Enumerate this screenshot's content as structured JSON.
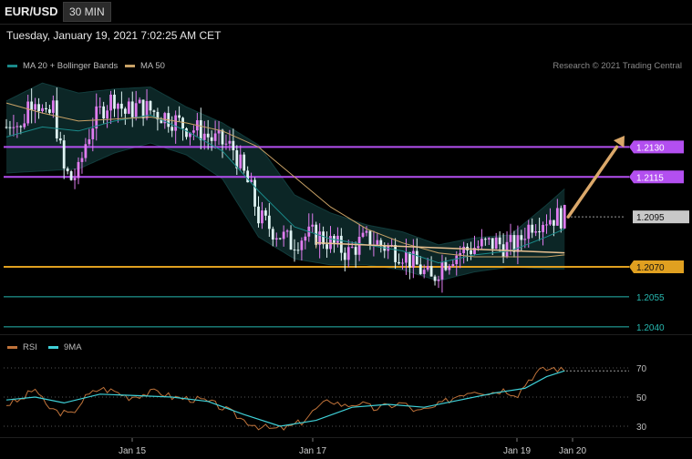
{
  "header": {
    "symbol": "EUR/USD",
    "timeframe": "30 MIN",
    "datetime": "Tuesday, January 19, 2021 7:02:25 AM CET",
    "credit": "Research © 2021 Trading Central"
  },
  "legend": {
    "ma20_bb": "MA 20 + Bollinger Bands",
    "ma50": "MA 50",
    "rsi": "RSI",
    "ma9": "9MA"
  },
  "colors": {
    "background": "#000000",
    "bullish": "#e07cf0",
    "bearish": "#dff3f3",
    "ma20": "#1a8a8a",
    "bollinger_fill": "#0d2a2a",
    "ma50": "#c9a266",
    "resistance": "#b34ff0",
    "pivot": "#e0a020",
    "support": "#27b8b0",
    "target_arrow": "#dba86a",
    "rsi": "#c0733a",
    "rsi_ma": "#3fd1d8",
    "current_price_tag": "#c8c8c8"
  },
  "levels": [
    {
      "value": 1.213,
      "label": "1.2130",
      "kind": "resistance"
    },
    {
      "value": 1.2115,
      "label": "1.2115",
      "kind": "resistance"
    },
    {
      "value": 1.2095,
      "label": "1.2095",
      "kind": "current"
    },
    {
      "value": 1.207,
      "label": "1.2070",
      "kind": "pivot"
    },
    {
      "value": 1.2055,
      "label": "1.2055",
      "kind": "support"
    },
    {
      "value": 1.204,
      "label": "1.2040",
      "kind": "support"
    }
  ],
  "chart_data": {
    "type": "candlestick",
    "x_labels": [
      "Jan 15",
      "Jan 17",
      "Jan 19",
      "Jan 20"
    ],
    "ylim": [
      1.2034,
      1.2168
    ],
    "price_path": [
      [
        0,
        1.214
      ],
      [
        2,
        1.2145
      ],
      [
        4,
        1.2138
      ],
      [
        6,
        1.2152
      ],
      [
        8,
        1.2156
      ],
      [
        11,
        1.2143
      ],
      [
        13,
        1.215
      ],
      [
        16,
        1.2118
      ],
      [
        18,
        1.2114
      ],
      [
        20,
        1.2117
      ],
      [
        22,
        1.2132
      ],
      [
        24,
        1.2142
      ],
      [
        27,
        1.215
      ],
      [
        30,
        1.2155
      ],
      [
        33,
        1.2147
      ],
      [
        36,
        1.215
      ],
      [
        39,
        1.2149
      ],
      [
        42,
        1.2147
      ],
      [
        46,
        1.2144
      ],
      [
        50,
        1.214
      ],
      [
        54,
        1.2138
      ],
      [
        57,
        1.2134
      ],
      [
        60,
        1.2132
      ],
      [
        63,
        1.2129
      ],
      [
        66,
        1.2116
      ],
      [
        68,
        1.2108
      ],
      [
        70,
        1.2095
      ],
      [
        73,
        1.209
      ],
      [
        76,
        1.2086
      ],
      [
        79,
        1.2082
      ],
      [
        82,
        1.2085
      ],
      [
        86,
        1.2086
      ],
      [
        89,
        1.2083
      ],
      [
        92,
        1.208
      ],
      [
        95,
        1.2077
      ],
      [
        98,
        1.2082
      ],
      [
        101,
        1.2084
      ],
      [
        104,
        1.2081
      ],
      [
        107,
        1.2079
      ],
      [
        110,
        1.2077
      ],
      [
        113,
        1.2072
      ],
      [
        116,
        1.2067
      ],
      [
        118,
        1.2063
      ],
      [
        121,
        1.2072
      ],
      [
        124,
        1.2076
      ],
      [
        127,
        1.2078
      ],
      [
        130,
        1.208
      ],
      [
        133,
        1.2081
      ],
      [
        136,
        1.2082
      ],
      [
        139,
        1.208
      ],
      [
        142,
        1.2081
      ],
      [
        144,
        1.2088
      ],
      [
        146,
        1.2092
      ],
      [
        149,
        1.2094
      ],
      [
        152,
        1.2095
      ],
      [
        155,
        1.2095
      ]
    ],
    "ma20_path": [
      [
        0,
        1.2135
      ],
      [
        10,
        1.214
      ],
      [
        20,
        1.2138
      ],
      [
        30,
        1.2143
      ],
      [
        40,
        1.2146
      ],
      [
        50,
        1.2138
      ],
      [
        60,
        1.2128
      ],
      [
        70,
        1.2108
      ],
      [
        80,
        1.209
      ],
      [
        90,
        1.2084
      ],
      [
        100,
        1.2081
      ],
      [
        110,
        1.2078
      ],
      [
        120,
        1.2072
      ],
      [
        130,
        1.2076
      ],
      [
        140,
        1.2078
      ],
      [
        150,
        1.2085
      ],
      [
        155,
        1.2089
      ]
    ],
    "ma50_path": [
      [
        0,
        1.2152
      ],
      [
        10,
        1.2147
      ],
      [
        20,
        1.2143
      ],
      [
        30,
        1.2144
      ],
      [
        40,
        1.2145
      ],
      [
        50,
        1.2142
      ],
      [
        60,
        1.2138
      ],
      [
        70,
        1.213
      ],
      [
        80,
        1.2115
      ],
      [
        90,
        1.21
      ],
      [
        100,
        1.2089
      ],
      [
        110,
        1.2082
      ],
      [
        120,
        1.2077
      ],
      [
        130,
        1.2075
      ],
      [
        140,
        1.2075
      ],
      [
        150,
        1.2075
      ],
      [
        155,
        1.2076
      ]
    ],
    "bb_halfwidth": [
      [
        0,
        0.0018
      ],
      [
        10,
        0.0022
      ],
      [
        30,
        0.0016
      ],
      [
        50,
        0.0012
      ],
      [
        60,
        0.0014
      ],
      [
        70,
        0.0023
      ],
      [
        80,
        0.0016
      ],
      [
        100,
        0.001
      ],
      [
        120,
        0.0009
      ],
      [
        140,
        0.0008
      ],
      [
        150,
        0.0016
      ],
      [
        155,
        0.002
      ]
    ],
    "trendline": [
      [
        86,
        1.2082
      ],
      [
        155,
        1.2077
      ]
    ],
    "target_arrow": [
      [
        155,
        1.2095
      ],
      [
        171,
        1.213
      ]
    ],
    "rsi": {
      "ylim": [
        25,
        75
      ],
      "y_ticks": [
        70,
        50,
        30
      ],
      "rsi_path": [
        [
          0,
          45
        ],
        [
          4,
          48
        ],
        [
          8,
          56
        ],
        [
          11,
          44
        ],
        [
          14,
          40
        ],
        [
          18,
          38
        ],
        [
          22,
          50
        ],
        [
          26,
          56
        ],
        [
          30,
          54
        ],
        [
          34,
          50
        ],
        [
          38,
          52
        ],
        [
          42,
          54
        ],
        [
          46,
          50
        ],
        [
          50,
          49
        ],
        [
          54,
          48
        ],
        [
          58,
          45
        ],
        [
          62,
          40
        ],
        [
          66,
          34
        ],
        [
          70,
          30
        ],
        [
          74,
          28
        ],
        [
          78,
          29
        ],
        [
          82,
          33
        ],
        [
          86,
          42
        ],
        [
          90,
          48
        ],
        [
          94,
          44
        ],
        [
          98,
          46
        ],
        [
          102,
          42
        ],
        [
          106,
          44
        ],
        [
          110,
          46
        ],
        [
          114,
          40
        ],
        [
          118,
          42
        ],
        [
          122,
          47
        ],
        [
          126,
          52
        ],
        [
          130,
          55
        ],
        [
          134,
          53
        ],
        [
          138,
          55
        ],
        [
          142,
          52
        ],
        [
          145,
          62
        ],
        [
          148,
          68
        ],
        [
          152,
          70
        ],
        [
          155,
          68
        ]
      ],
      "ma_path": [
        [
          0,
          48
        ],
        [
          8,
          50
        ],
        [
          16,
          46
        ],
        [
          26,
          52
        ],
        [
          36,
          51
        ],
        [
          46,
          50
        ],
        [
          56,
          47
        ],
        [
          66,
          38
        ],
        [
          76,
          30
        ],
        [
          86,
          34
        ],
        [
          96,
          43
        ],
        [
          106,
          45
        ],
        [
          116,
          43
        ],
        [
          126,
          48
        ],
        [
          136,
          53
        ],
        [
          144,
          56
        ],
        [
          150,
          64
        ],
        [
          155,
          68
        ]
      ]
    }
  }
}
